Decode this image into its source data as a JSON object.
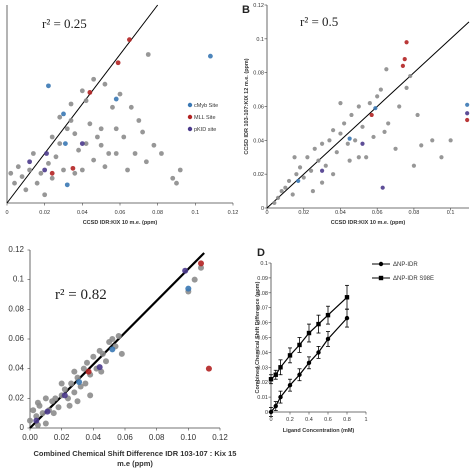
{
  "chart_data": [
    {
      "panel": "",
      "type": "scatter",
      "annotation": "r² = 0.25",
      "xlabel": "CCSD IDR:KIX 10 m.e. (ppm)",
      "ylabel": "",
      "xlim": [
        0,
        0.12
      ],
      "ylim": [
        0,
        0.12
      ],
      "x_ticks": [
        "0",
        "0.02",
        "0.04",
        "0.06",
        "0.08",
        "0.1",
        "0.12"
      ],
      "y_ticks": [],
      "legend": [
        "cMyb Site",
        "MLL Site",
        "pKID site"
      ],
      "legend_position": "right",
      "colors": {
        "default": "#8c8c8c",
        "cmyb": "#3a78b4",
        "mll": "#b22222",
        "pkid": "#4b3a8c",
        "line": "#000000"
      },
      "fit_line": {
        "x": [
          0,
          0.08
        ],
        "y": [
          0,
          0.12
        ]
      },
      "series": [
        {
          "name": "",
          "color_key": "default",
          "points": [
            [
              0.002,
              0.018
            ],
            [
              0.004,
              0.012
            ],
            [
              0.006,
              0.022
            ],
            [
              0.008,
              0.016
            ],
            [
              0.01,
              0.008
            ],
            [
              0.012,
              0.02
            ],
            [
              0.014,
              0.03
            ],
            [
              0.016,
              0.012
            ],
            [
              0.018,
              0.018
            ],
            [
              0.02,
              0.005
            ],
            [
              0.022,
              0.024
            ],
            [
              0.024,
              0.015
            ],
            [
              0.026,
              0.028
            ],
            [
              0.028,
              0.036
            ],
            [
              0.03,
              0.02
            ],
            [
              0.032,
              0.045
            ],
            [
              0.034,
              0.05
            ],
            [
              0.036,
              0.042
            ],
            [
              0.038,
              0.032
            ],
            [
              0.04,
              0.02
            ],
            [
              0.042,
              0.036
            ],
            [
              0.044,
              0.048
            ],
            [
              0.046,
              0.026
            ],
            [
              0.048,
              0.04
            ],
            [
              0.05,
              0.035
            ],
            [
              0.052,
              0.022
            ],
            [
              0.054,
              0.03
            ],
            [
              0.056,
              0.058
            ],
            [
              0.058,
              0.045
            ],
            [
              0.06,
              0.066
            ],
            [
              0.062,
              0.04
            ],
            [
              0.064,
              0.02
            ],
            [
              0.066,
              0.058
            ],
            [
              0.068,
              0.03
            ],
            [
              0.07,
              0.05
            ],
            [
              0.072,
              0.043
            ],
            [
              0.074,
              0.025
            ],
            [
              0.078,
              0.035
            ],
            [
              0.082,
              0.03
            ],
            [
              0.088,
              0.015
            ],
            [
              0.092,
              0.02
            ],
            [
              0.09,
              0.012
            ],
            [
              0.034,
              0.06
            ],
            [
              0.04,
              0.068
            ],
            [
              0.046,
              0.075
            ],
            [
              0.028,
              0.052
            ],
            [
              0.05,
              0.045
            ],
            [
              0.052,
              0.072
            ],
            [
              0.024,
              0.04
            ],
            [
              0.036,
              0.018
            ],
            [
              0.058,
              0.03
            ],
            [
              0.075,
              0.09
            ],
            [
              0.042,
              0.062
            ]
          ]
        },
        {
          "name": "cMyb Site",
          "color_key": "cmyb",
          "points": [
            [
              0.022,
              0.071
            ],
            [
              0.031,
              0.036
            ],
            [
              0.058,
              0.063
            ],
            [
              0.032,
              0.011
            ],
            [
              0.03,
              0.054
            ],
            [
              0.108,
              0.089
            ]
          ]
        },
        {
          "name": "MLL Site",
          "color_key": "mll",
          "points": [
            [
              0.065,
              0.099
            ],
            [
              0.059,
              0.085
            ],
            [
              0.044,
              0.067
            ],
            [
              0.035,
              0.021
            ],
            [
              0.024,
              0.018
            ]
          ]
        },
        {
          "name": "pKID site",
          "color_key": "pkid",
          "points": [
            [
              0.021,
              0.03
            ],
            [
              0.04,
              0.036
            ],
            [
              0.02,
              0.02
            ],
            [
              0.012,
              0.025
            ]
          ]
        }
      ]
    },
    {
      "panel": "B",
      "type": "scatter",
      "annotation": "r² = 0.5",
      "xlabel": "CCSD IDR:KIX 10 m.e. (ppm)",
      "ylabel": "CCSD IDR 103-107:KIX 12 m.e. (ppm)",
      "xlim": [
        0,
        0.11
      ],
      "ylim": [
        0,
        0.12
      ],
      "x_ticks": [
        "0",
        "0.02",
        "0.04",
        "0.06",
        "0.08",
        "0.1"
      ],
      "y_ticks": [
        "0",
        "0.02",
        "0.04",
        "0.06",
        "0.08",
        "0.1",
        "0.12"
      ],
      "fit_line": {
        "x": [
          0,
          0.11
        ],
        "y": [
          0,
          0.11
        ]
      },
      "series": [
        {
          "name": "",
          "color_key": "default",
          "points": [
            [
              0.004,
              0.003
            ],
            [
              0.006,
              0.006
            ],
            [
              0.008,
              0.01
            ],
            [
              0.01,
              0.012
            ],
            [
              0.012,
              0.016
            ],
            [
              0.014,
              0.008
            ],
            [
              0.016,
              0.02
            ],
            [
              0.018,
              0.024
            ],
            [
              0.02,
              0.018
            ],
            [
              0.022,
              0.03
            ],
            [
              0.024,
              0.022
            ],
            [
              0.026,
              0.035
            ],
            [
              0.028,
              0.028
            ],
            [
              0.03,
              0.038
            ],
            [
              0.032,
              0.025
            ],
            [
              0.034,
              0.04
            ],
            [
              0.036,
              0.046
            ],
            [
              0.038,
              0.033
            ],
            [
              0.04,
              0.044
            ],
            [
              0.042,
              0.05
            ],
            [
              0.044,
              0.038
            ],
            [
              0.046,
              0.055
            ],
            [
              0.048,
              0.04
            ],
            [
              0.05,
              0.06
            ],
            [
              0.052,
              0.048
            ],
            [
              0.054,
              0.03
            ],
            [
              0.056,
              0.062
            ],
            [
              0.058,
              0.042
            ],
            [
              0.06,
              0.066
            ],
            [
              0.062,
              0.07
            ],
            [
              0.064,
              0.045
            ],
            [
              0.066,
              0.05
            ],
            [
              0.07,
              0.035
            ],
            [
              0.072,
              0.06
            ],
            [
              0.076,
              0.071
            ],
            [
              0.08,
              0.025
            ],
            [
              0.084,
              0.037
            ],
            [
              0.09,
              0.04
            ],
            [
              0.095,
              0.03
            ],
            [
              0.1,
              0.04
            ],
            [
              0.025,
              0.01
            ],
            [
              0.03,
              0.015
            ],
            [
              0.036,
              0.02
            ],
            [
              0.045,
              0.028
            ],
            [
              0.065,
              0.082
            ],
            [
              0.078,
              0.078
            ],
            [
              0.082,
              0.055
            ],
            [
              0.04,
              0.062
            ],
            [
              0.015,
              0.03
            ],
            [
              0.05,
              0.03
            ]
          ]
        },
        {
          "name": "cMyb Site",
          "color_key": "cmyb",
          "points": [
            [
              0.109,
              0.061
            ],
            [
              0.059,
              0.059
            ],
            [
              0.045,
              0.041
            ],
            [
              0.017,
              0.016
            ]
          ]
        },
        {
          "name": "MLL Site",
          "color_key": "mll",
          "points": [
            [
              0.076,
              0.098
            ],
            [
              0.075,
              0.088
            ],
            [
              0.109,
              0.052
            ],
            [
              0.074,
              0.084
            ],
            [
              0.057,
              0.055
            ]
          ]
        },
        {
          "name": "pKID site",
          "color_key": "pkid",
          "points": [
            [
              0.109,
              0.056
            ],
            [
              0.052,
              0.038
            ],
            [
              0.03,
              0.022
            ],
            [
              0.063,
              0.012
            ]
          ]
        }
      ]
    },
    {
      "panel": "",
      "type": "scatter",
      "annotation": "r² = 0.82",
      "xlabel": "Combined Chemical Shift Difference IDR 103-107 : Kix 15 m.e (ppm)",
      "ylabel": "",
      "xlim": [
        0,
        0.12
      ],
      "ylim": [
        0,
        0.12
      ],
      "x_ticks": [
        "0.00",
        "0.02",
        "0.04",
        "0.06",
        "0.08",
        "0.10",
        "0.12"
      ],
      "y_ticks": [
        "0",
        "0.02",
        "0.04",
        "0.06",
        "0.08",
        "0.1",
        "0.12"
      ],
      "fit_line": {
        "x": [
          0,
          0.11
        ],
        "y": [
          0,
          0.118
        ]
      },
      "series": [
        {
          "name": "",
          "color_key": "default",
          "points": [
            [
              0.0,
              0.005
            ],
            [
              0.002,
              0.012
            ],
            [
              0.004,
              0.008
            ],
            [
              0.006,
              0.015
            ],
            [
              0.008,
              0.01
            ],
            [
              0.01,
              0.003
            ],
            [
              0.012,
              0.012
            ],
            [
              0.014,
              0.018
            ],
            [
              0.016,
              0.02
            ],
            [
              0.018,
              0.014
            ],
            [
              0.02,
              0.022
            ],
            [
              0.022,
              0.026
            ],
            [
              0.024,
              0.02
            ],
            [
              0.026,
              0.03
            ],
            [
              0.028,
              0.024
            ],
            [
              0.03,
              0.034
            ],
            [
              0.032,
              0.028
            ],
            [
              0.034,
              0.04
            ],
            [
              0.036,
              0.044
            ],
            [
              0.038,
              0.036
            ],
            [
              0.04,
              0.048
            ],
            [
              0.042,
              0.04
            ],
            [
              0.044,
              0.052
            ],
            [
              0.046,
              0.05
            ],
            [
              0.048,
              0.045
            ],
            [
              0.05,
              0.058
            ],
            [
              0.052,
              0.06
            ],
            [
              0.054,
              0.055
            ],
            [
              0.056,
              0.062
            ],
            [
              0.03,
              0.018
            ],
            [
              0.025,
              0.015
            ],
            [
              0.015,
              0.01
            ],
            [
              0.035,
              0.03
            ],
            [
              0.045,
              0.038
            ],
            [
              0.02,
              0.03
            ],
            [
              0.01,
              0.02
            ],
            [
              0.005,
              0.017
            ],
            [
              0.058,
              0.05
            ],
            [
              0.1,
              0.092
            ],
            [
              0.104,
              0.1
            ],
            [
              0.108,
              0.108
            ],
            [
              0.005,
              0.002
            ],
            [
              0.038,
              0.022
            ],
            [
              0.028,
              0.038
            ]
          ]
        },
        {
          "name": "cMyb Site",
          "color_key": "cmyb",
          "points": [
            [
              0.031,
              0.031
            ],
            [
              0.052,
              0.053
            ],
            [
              0.1,
              0.094
            ]
          ]
        },
        {
          "name": "MLL Site",
          "color_key": "mll",
          "points": [
            [
              0.108,
              0.111
            ],
            [
              0.113,
              0.04
            ],
            [
              0.037,
              0.038
            ]
          ]
        },
        {
          "name": "pKID site",
          "color_key": "pkid",
          "points": [
            [
              0.098,
              0.106
            ],
            [
              0.044,
              0.041
            ],
            [
              0.022,
              0.022
            ],
            [
              0.004,
              0.005
            ],
            [
              0.011,
              0.011
            ]
          ]
        }
      ]
    },
    {
      "panel": "D",
      "type": "line",
      "xlabel": "Ligand Concentration (mM)",
      "ylabel": "Combined Chemical Shift Difference (ppm)",
      "xlim": [
        0,
        1
      ],
      "ylim": [
        0,
        0.1
      ],
      "x_ticks": [
        "0",
        "0.2",
        "0.4",
        "0.6",
        "0.8",
        "1"
      ],
      "y_ticks": [
        "0",
        "0.01",
        "0.02",
        "0.03",
        "0.04",
        "0.05",
        "0.06",
        "0.07",
        "0.08",
        "0.09",
        "0.1"
      ],
      "legend": [
        "ΔNP-IDR",
        "ΔNP-IDR S98E"
      ],
      "legend_position": "top-right",
      "x": [
        0.0,
        0.05,
        0.1,
        0.2,
        0.3,
        0.4,
        0.5,
        0.6,
        0.8
      ],
      "series": [
        {
          "name": "ΔNP-IDR",
          "marker": "circle",
          "values": [
            0.0,
            0.004,
            0.01,
            0.018,
            0.025,
            0.033,
            0.04,
            0.049,
            0.063
          ],
          "errors": [
            0.003,
            0.003,
            0.004,
            0.004,
            0.004,
            0.004,
            0.004,
            0.005,
            0.006
          ]
        },
        {
          "name": "ΔNP-IDR S98E",
          "marker": "square",
          "values": [
            0.022,
            0.025,
            0.03,
            0.038,
            0.045,
            0.053,
            0.059,
            0.065,
            0.077
          ],
          "errors": [
            0.003,
            0.003,
            0.005,
            0.005,
            0.005,
            0.006,
            0.006,
            0.006,
            0.008
          ]
        }
      ]
    }
  ]
}
